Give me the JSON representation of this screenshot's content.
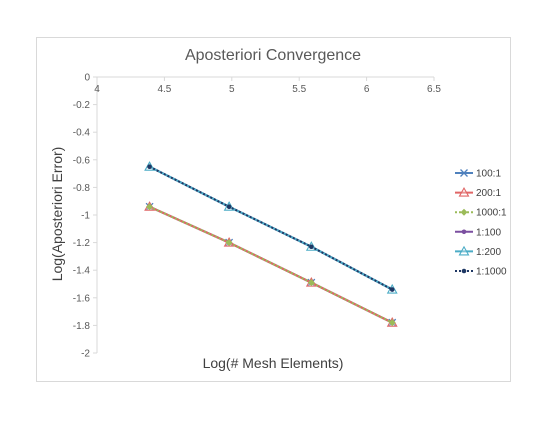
{
  "chart_data": {
    "type": "line",
    "title": "Aposteriori Convergence",
    "xlabel": "Log(# Mesh Elements)",
    "ylabel": "Log(Aposteriori Error)",
    "xlim": [
      4,
      6.5
    ],
    "ylim": [
      -2,
      0
    ],
    "xticks": [
      "4",
      "4.5",
      "5",
      "5.5",
      "6",
      "6.5"
    ],
    "yticks": [
      "0",
      "-0.2",
      "-0.4",
      "-0.6",
      "-0.8",
      "-1",
      "-1.2",
      "-1.4",
      "-1.6",
      "-1.8",
      "-2"
    ],
    "x_axis_position": "top (crosses at y = 0)",
    "grid": false,
    "legend_position": "right",
    "series": [
      {
        "name": "100:1",
        "color": "#4f81bd",
        "marker": "x",
        "dash": "solid",
        "x": [
          4.39,
          4.98,
          5.59,
          6.19
        ],
        "y": [
          -0.94,
          -1.2,
          -1.49,
          -1.78
        ]
      },
      {
        "name": "200:1",
        "color": "#e06666",
        "marker": "triangle",
        "dash": "solid",
        "x": [
          4.39,
          4.98,
          5.59,
          6.19
        ],
        "y": [
          -0.94,
          -1.2,
          -1.49,
          -1.78
        ]
      },
      {
        "name": "1000:1",
        "color": "#9bbb59",
        "marker": "diamond",
        "dash": "dotted",
        "x": [
          4.39,
          4.98,
          5.59,
          6.19
        ],
        "y": [
          -0.94,
          -1.2,
          -1.49,
          -1.78
        ]
      },
      {
        "name": "1:100",
        "color": "#7b4fa0",
        "marker": "circle",
        "dash": "solid",
        "x": [
          4.39,
          4.98,
          5.59,
          6.19
        ],
        "y": [
          -0.65,
          -0.94,
          -1.23,
          -1.54
        ]
      },
      {
        "name": "1:200",
        "color": "#4bacc6",
        "marker": "triangle",
        "dash": "solid",
        "x": [
          4.39,
          4.98,
          5.59,
          6.19
        ],
        "y": [
          -0.65,
          -0.94,
          -1.23,
          -1.54
        ]
      },
      {
        "name": "1:1000",
        "color": "#1f3864",
        "marker": "circle",
        "dash": "dotted",
        "x": [
          4.39,
          4.98,
          5.59,
          6.19
        ],
        "y": [
          -0.65,
          -0.94,
          -1.23,
          -1.54
        ]
      }
    ]
  }
}
